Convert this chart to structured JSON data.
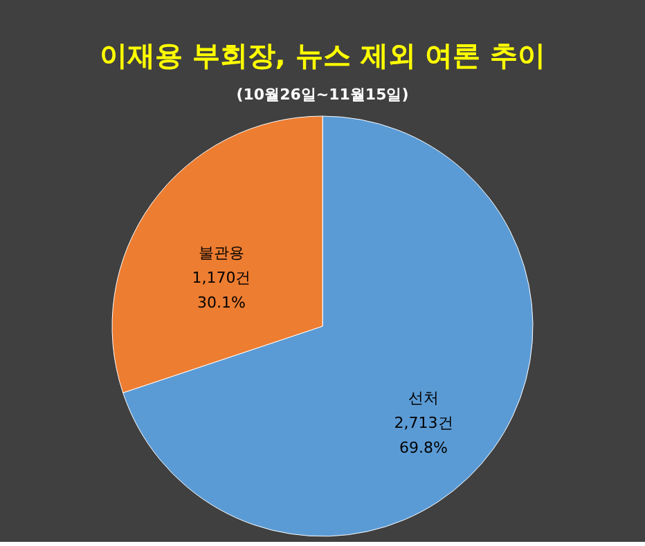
{
  "chart_data": {
    "type": "pie",
    "title": "이재용 부회장, 뉴스 제외 여론 추이",
    "subtitle": "(10월26일~11월15일)",
    "categories": [
      "선처",
      "불관용"
    ],
    "values": [
      2713,
      1170
    ],
    "colors": [
      "#5b9bd5",
      "#ed7d31"
    ],
    "value_labels": [
      "2,713건",
      "1,170건"
    ],
    "annotations": [
      {
        "text": "69.8%",
        "x": "선처"
      },
      {
        "text": "30.1%",
        "x": "불관용"
      }
    ],
    "legend": false
  }
}
